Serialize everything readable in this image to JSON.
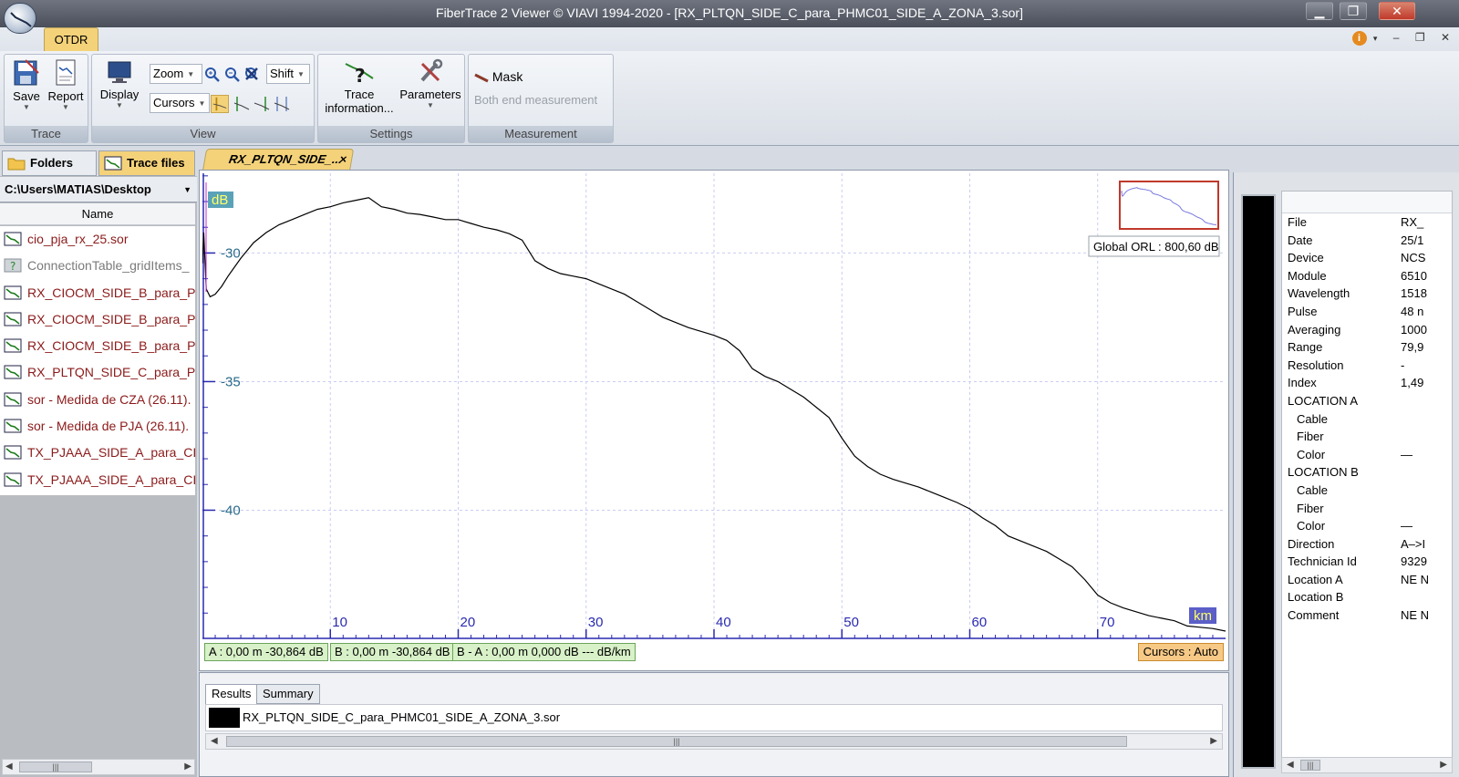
{
  "window": {
    "title": "FiberTrace 2 Viewer © VIAVI 1994-2020 - [RX_PLTQN_SIDE_C_para_PHMC01_SIDE_A_ZONA_3.sor]",
    "minimize": "▁",
    "maximize": "❐",
    "close": "✕"
  },
  "ribbon": {
    "tab": "OTDR",
    "groups": {
      "trace": {
        "label": "Trace",
        "save": "Save",
        "report": "Report"
      },
      "view": {
        "label": "View",
        "display": "Display",
        "zoom": "Zoom",
        "shift": "Shift",
        "cursors": "Cursors"
      },
      "settings": {
        "label": "Settings",
        "trace_information": "Trace information...",
        "parameters": "Parameters"
      },
      "measurement": {
        "label": "Measurement",
        "mask": "Mask",
        "both_end": "Both end measurement"
      }
    }
  },
  "left_panel": {
    "tab_folders": "Folders",
    "tab_trace_files": "Trace files",
    "path": "C:\\Users\\MATIAS\\Desktop",
    "column_name": "Name",
    "files": [
      {
        "name": "cio_pja_rx_25.sor",
        "type": "trace"
      },
      {
        "name": "ConnectionTable_gridItems_",
        "type": "unknown"
      },
      {
        "name": "RX_CIOCM_SIDE_B_para_PJA",
        "type": "trace"
      },
      {
        "name": "RX_CIOCM_SIDE_B_para_PJA",
        "type": "trace"
      },
      {
        "name": "RX_CIOCM_SIDE_B_para_PJA",
        "type": "trace"
      },
      {
        "name": "RX_PLTQN_SIDE_C_para_PHM",
        "type": "trace"
      },
      {
        "name": "sor - Medida de CZA (26.11).",
        "type": "trace"
      },
      {
        "name": "sor - Medida de PJA (26.11).",
        "type": "trace"
      },
      {
        "name": "TX_PJAAA_SIDE_A_para_CIO",
        "type": "trace"
      },
      {
        "name": "TX_PJAAA_SIDE_A_para_CIO",
        "type": "trace"
      }
    ]
  },
  "document_tab": {
    "label": "RX_PLTQN_SIDE_...",
    "close": "×"
  },
  "chart_data": {
    "type": "line",
    "ylabel": "dB",
    "xlabel": "km",
    "xlim": [
      0,
      80
    ],
    "ylim": [
      -44.7,
      -26.9
    ],
    "x_ticks": [
      10,
      20,
      30,
      40,
      50,
      60,
      70
    ],
    "y_ticks": [
      -30,
      -35,
      -40
    ],
    "grid": true,
    "overview_thumbnail": true,
    "series": [
      {
        "color": "#000000",
        "x": [
          0,
          0.1,
          0.3,
          0.6,
          1,
          1.5,
          2,
          3,
          4,
          5,
          6,
          7,
          8,
          9,
          10,
          11,
          12,
          13,
          14,
          15,
          16,
          17,
          18,
          19,
          20,
          21,
          22,
          23,
          24,
          25,
          26,
          27,
          28,
          29,
          30,
          31,
          32,
          33,
          34,
          35,
          36,
          37,
          38,
          39,
          40,
          41,
          42,
          43,
          44,
          45,
          46,
          47,
          48,
          49,
          50,
          51,
          52,
          53,
          54,
          55,
          56,
          57,
          58,
          59,
          60,
          61,
          62,
          63,
          64,
          65,
          66,
          67,
          68,
          69,
          70,
          71,
          72,
          73,
          74,
          75,
          76,
          77,
          78,
          79,
          80
        ],
        "y": [
          -30.4,
          -29.2,
          -31.4,
          -31.7,
          -31.6,
          -31.3,
          -30.9,
          -30.2,
          -29.6,
          -29.2,
          -28.9,
          -28.7,
          -28.5,
          -28.3,
          -28.2,
          -28.05,
          -27.95,
          -27.85,
          -28.2,
          -28.3,
          -28.45,
          -28.5,
          -28.6,
          -28.7,
          -28.7,
          -28.85,
          -29.0,
          -29.1,
          -29.25,
          -29.5,
          -30.3,
          -30.6,
          -30.8,
          -30.9,
          -31.0,
          -31.2,
          -31.4,
          -31.6,
          -31.9,
          -32.2,
          -32.5,
          -32.7,
          -32.9,
          -33.05,
          -33.2,
          -33.4,
          -33.8,
          -34.5,
          -34.8,
          -35.0,
          -35.3,
          -35.6,
          -36.0,
          -36.4,
          -37.2,
          -37.9,
          -38.3,
          -38.6,
          -38.8,
          -38.95,
          -39.1,
          -39.3,
          -39.5,
          -39.7,
          -39.95,
          -40.3,
          -40.6,
          -41.0,
          -41.2,
          -41.4,
          -41.6,
          -41.9,
          -42.2,
          -42.7,
          -43.3,
          -43.6,
          -43.8,
          -43.95,
          -44.1,
          -44.2,
          -44.3,
          -44.5,
          -44.55,
          -44.6,
          -44.7
        ]
      }
    ],
    "annotations": {
      "global_orl": "Global ORL : 800,60 dB"
    }
  },
  "cursor_status": {
    "a": "A : 0,00 m  -30,864 dB",
    "b": "B : 0,00 m  -30,864 dB",
    "ba": "B - A : 0,00 m   0,000 dB --- dB/km",
    "mode": "Cursors : Auto"
  },
  "results": {
    "tab_results": "Results",
    "tab_summary": "Summary",
    "file": "RX_PLTQN_SIDE_C_para_PHMC01_SIDE_A_ZONA_3.sor",
    "swatch_color": "#000000"
  },
  "info_panel": {
    "rows": [
      {
        "key": "File",
        "value": "RX_",
        "sub": false
      },
      {
        "key": "Date",
        "value": "25/1",
        "sub": false
      },
      {
        "key": "Device",
        "value": "NCS",
        "sub": false
      },
      {
        "key": "Module",
        "value": "6510",
        "sub": false
      },
      {
        "key": "Wavelength",
        "value": "1518",
        "sub": false
      },
      {
        "key": "Pulse",
        "value": "48 n",
        "sub": false
      },
      {
        "key": "Averaging",
        "value": "1000",
        "sub": false
      },
      {
        "key": "Range",
        "value": "79,9",
        "sub": false
      },
      {
        "key": "Resolution",
        "value": "-",
        "sub": false
      },
      {
        "key": "Index",
        "value": "1,49",
        "sub": false
      },
      {
        "key": "LOCATION A",
        "value": "",
        "sub": false
      },
      {
        "key": "Cable",
        "value": "",
        "sub": true
      },
      {
        "key": "Fiber",
        "value": "",
        "sub": true
      },
      {
        "key": "Color",
        "value": "—",
        "sub": true
      },
      {
        "key": "LOCATION B",
        "value": "",
        "sub": false
      },
      {
        "key": "Cable",
        "value": "",
        "sub": true
      },
      {
        "key": "Fiber",
        "value": "",
        "sub": true
      },
      {
        "key": "Color",
        "value": "—",
        "sub": true
      },
      {
        "key": "Direction",
        "value": "A–>I",
        "sub": false
      },
      {
        "key": "Technician Id",
        "value": "9329",
        "sub": false
      },
      {
        "key": "Location A",
        "value": "NE N",
        "sub": false
      },
      {
        "key": "Location B",
        "value": "",
        "sub": false
      },
      {
        "key": "Comment",
        "value": "NE N",
        "sub": false
      }
    ]
  }
}
